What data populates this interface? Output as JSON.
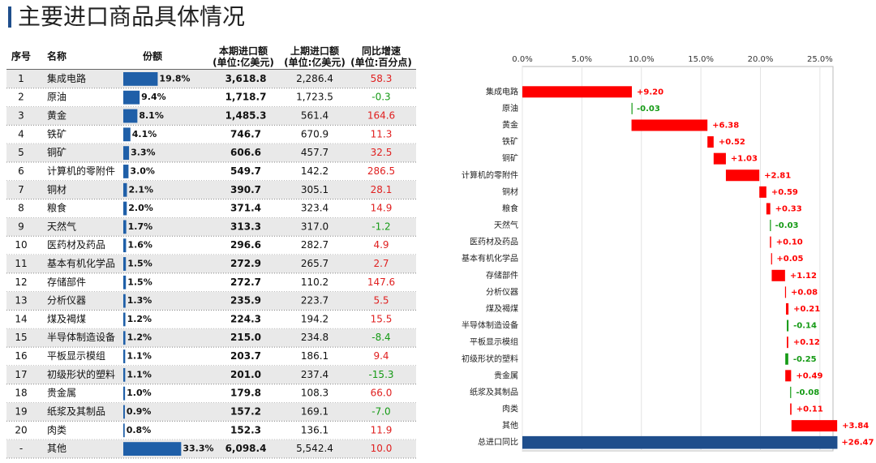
{
  "title": "主要进口商品具体情况",
  "table": {
    "headers": [
      "序号",
      "名称",
      "份额",
      "本期进口额\n(单位:亿美元)",
      "上期进口额\n(单位:亿美元)",
      "同比增速\n(单位:百分点)"
    ],
    "share_max": 35,
    "bar_color": "#1f5fa8",
    "rows": [
      {
        "no": "1",
        "name": "集成电路",
        "share": 19.8,
        "share_label": "19.8%",
        "current": "3,618.8",
        "previous": "2,286.4",
        "growth": "58.3"
      },
      {
        "no": "2",
        "name": "原油",
        "share": 9.4,
        "share_label": "9.4%",
        "current": "1,718.7",
        "previous": "1,723.5",
        "growth": "-0.3"
      },
      {
        "no": "3",
        "name": "黄金",
        "share": 8.1,
        "share_label": "8.1%",
        "current": "1,485.3",
        "previous": "561.4",
        "growth": "164.6"
      },
      {
        "no": "4",
        "name": "铁矿",
        "share": 4.1,
        "share_label": "4.1%",
        "current": "746.7",
        "previous": "670.9",
        "growth": "11.3"
      },
      {
        "no": "5",
        "name": "铜矿",
        "share": 3.3,
        "share_label": "3.3%",
        "current": "606.6",
        "previous": "457.7",
        "growth": "32.5"
      },
      {
        "no": "6",
        "name": "计算机的零附件",
        "share": 3.0,
        "share_label": "3.0%",
        "current": "549.7",
        "previous": "142.2",
        "growth": "286.5"
      },
      {
        "no": "7",
        "name": "铜材",
        "share": 2.1,
        "share_label": "2.1%",
        "current": "390.7",
        "previous": "305.1",
        "growth": "28.1"
      },
      {
        "no": "8",
        "name": "粮食",
        "share": 2.0,
        "share_label": "2.0%",
        "current": "371.4",
        "previous": "323.4",
        "growth": "14.9"
      },
      {
        "no": "9",
        "name": "天然气",
        "share": 1.7,
        "share_label": "1.7%",
        "current": "313.3",
        "previous": "317.0",
        "growth": "-1.2"
      },
      {
        "no": "10",
        "name": "医药材及药品",
        "share": 1.6,
        "share_label": "1.6%",
        "current": "296.6",
        "previous": "282.7",
        "growth": "4.9"
      },
      {
        "no": "11",
        "name": "基本有机化学品",
        "share": 1.5,
        "share_label": "1.5%",
        "current": "272.9",
        "previous": "265.7",
        "growth": "2.7"
      },
      {
        "no": "12",
        "name": "存储部件",
        "share": 1.5,
        "share_label": "1.5%",
        "current": "272.7",
        "previous": "110.2",
        "growth": "147.6"
      },
      {
        "no": "13",
        "name": "分析仪器",
        "share": 1.3,
        "share_label": "1.3%",
        "current": "235.9",
        "previous": "223.7",
        "growth": "5.5"
      },
      {
        "no": "14",
        "name": "煤及褐煤",
        "share": 1.2,
        "share_label": "1.2%",
        "current": "224.3",
        "previous": "194.2",
        "growth": "15.5"
      },
      {
        "no": "15",
        "name": "半导体制造设备",
        "share": 1.2,
        "share_label": "1.2%",
        "current": "215.0",
        "previous": "234.8",
        "growth": "-8.4"
      },
      {
        "no": "16",
        "name": "平板显示模组",
        "share": 1.1,
        "share_label": "1.1%",
        "current": "203.7",
        "previous": "186.1",
        "growth": "9.4"
      },
      {
        "no": "17",
        "name": "初级形状的塑料",
        "share": 1.1,
        "share_label": "1.1%",
        "current": "201.0",
        "previous": "237.4",
        "growth": "-15.3"
      },
      {
        "no": "18",
        "name": "贵金属",
        "share": 1.0,
        "share_label": "1.0%",
        "current": "179.8",
        "previous": "108.3",
        "growth": "66.0"
      },
      {
        "no": "19",
        "name": "纸浆及其制品",
        "share": 0.9,
        "share_label": "0.9%",
        "current": "157.2",
        "previous": "169.1",
        "growth": "-7.0"
      },
      {
        "no": "20",
        "name": "肉类",
        "share": 0.8,
        "share_label": "0.8%",
        "current": "152.3",
        "previous": "136.1",
        "growth": "11.9"
      },
      {
        "no": "-",
        "name": "其他",
        "share": 33.3,
        "share_label": "33.3%",
        "current": "6,098.4",
        "previous": "5,542.4",
        "growth": "10.0"
      }
    ]
  },
  "chart_data": {
    "type": "waterfall",
    "categories": [
      "集成电路",
      "原油",
      "黄金",
      "铁矿",
      "铜矿",
      "计算机的零附件",
      "铜材",
      "粮食",
      "天然气",
      "医药材及药品",
      "基本有机化学品",
      "存储部件",
      "分析仪器",
      "煤及褐煤",
      "半导体制造设备",
      "平板显示模组",
      "初级形状的塑料",
      "贵金属",
      "纸浆及其制品",
      "肉类",
      "其他"
    ],
    "values": [
      9.2,
      -0.03,
      6.38,
      0.52,
      1.03,
      2.81,
      0.59,
      0.33,
      -0.03,
      0.1,
      0.05,
      1.12,
      0.08,
      0.21,
      -0.14,
      0.12,
      -0.25,
      0.49,
      -0.08,
      0.11,
      3.84
    ],
    "value_labels": [
      "+9.20",
      "-0.03",
      "+6.38",
      "+0.52",
      "+1.03",
      "+2.81",
      "+0.59",
      "+0.33",
      "-0.03",
      "+0.10",
      "+0.05",
      "+1.12",
      "+0.08",
      "+0.21",
      "-0.14",
      "+0.12",
      "-0.25",
      "+0.49",
      "-0.08",
      "+0.11",
      "+3.84"
    ],
    "total": {
      "name": "总进口同比",
      "value": 26.47,
      "label": "+26.47",
      "color": "#1f4e8c"
    },
    "positive_color": "#ff0000",
    "negative_color": "#159a15",
    "xlim": [
      0,
      26.1
    ],
    "xticks": [
      {
        "value": 0,
        "label": "0.0%"
      },
      {
        "value": 5,
        "label": "5.0%"
      },
      {
        "value": 10,
        "label": "10.0%"
      },
      {
        "value": 15,
        "label": "15.0%"
      },
      {
        "value": 20,
        "label": "20.0%"
      },
      {
        "value": 25,
        "label": "25.0%"
      }
    ],
    "grid": true
  }
}
